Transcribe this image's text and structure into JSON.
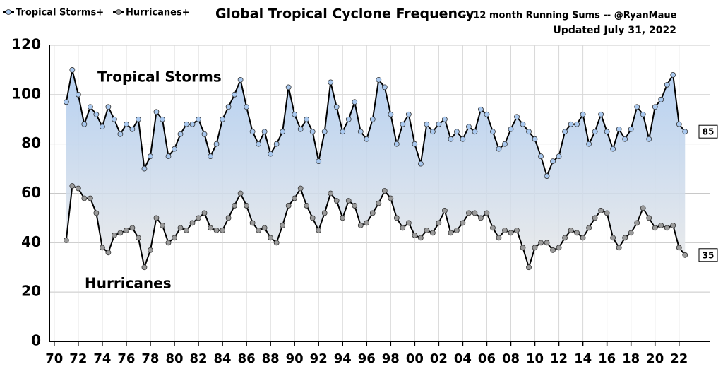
{
  "chart_data": {
    "type": "line",
    "title": "Global Tropical Cyclone Frequency",
    "subtitle": "-- 12 month Running Sums -- @RyanMaue",
    "updated": "Updated July 31, 2022",
    "annotations": [
      "Tropical Storms",
      "Hurricanes"
    ],
    "end_labels": [
      85,
      35
    ],
    "x": [
      1971,
      1971.5,
      1972,
      1972.5,
      1973,
      1973.5,
      1974,
      1974.5,
      1975,
      1975.5,
      1976,
      1976.5,
      1977,
      1977.5,
      1978,
      1978.5,
      1979,
      1979.5,
      1980,
      1980.5,
      1981,
      1981.5,
      1982,
      1982.5,
      1983,
      1983.5,
      1984,
      1984.5,
      1985,
      1985.5,
      1986,
      1986.5,
      1987,
      1987.5,
      1988,
      1988.5,
      1989,
      1989.5,
      1990,
      1990.5,
      1991,
      1991.5,
      1992,
      1992.5,
      1993,
      1993.5,
      1994,
      1994.5,
      1995,
      1995.5,
      1996,
      1996.5,
      1997,
      1997.5,
      1998,
      1998.5,
      1999,
      1999.5,
      2000,
      2000.5,
      2001,
      2001.5,
      2002,
      2002.5,
      2003,
      2003.5,
      2004,
      2004.5,
      2005,
      2005.5,
      2006,
      2006.5,
      2007,
      2007.5,
      2008,
      2008.5,
      2009,
      2009.5,
      2010,
      2010.5,
      2011,
      2011.5,
      2012,
      2012.5,
      2013,
      2013.5,
      2014,
      2014.5,
      2015,
      2015.5,
      2016,
      2016.5,
      2017,
      2017.5,
      2018,
      2018.5,
      2019,
      2019.5,
      2020,
      2020.5,
      2021,
      2021.5,
      2022,
      2022.5
    ],
    "series": [
      {
        "name": "Tropical Storms+",
        "color": "#a9c8ee",
        "values": [
          97,
          110,
          100,
          88,
          95,
          92,
          87,
          95,
          90,
          84,
          88,
          86,
          90,
          70,
          75,
          93,
          90,
          75,
          78,
          84,
          88,
          88,
          90,
          84,
          75,
          80,
          90,
          95,
          100,
          106,
          95,
          85,
          80,
          85,
          76,
          80,
          85,
          103,
          92,
          86,
          90,
          85,
          73,
          85,
          105,
          95,
          85,
          90,
          97,
          85,
          82,
          90,
          106,
          103,
          92,
          80,
          88,
          92,
          80,
          72,
          88,
          85,
          88,
          90,
          82,
          85,
          82,
          87,
          85,
          94,
          92,
          85,
          78,
          80,
          86,
          91,
          88,
          85,
          82,
          75,
          67,
          73,
          75,
          85,
          88,
          88,
          92,
          80,
          85,
          92,
          85,
          78,
          86,
          82,
          86,
          95,
          92,
          82,
          95,
          98,
          104,
          108,
          88,
          85
        ]
      },
      {
        "name": "Hurricanes+",
        "color": "#9a9a9a",
        "values": [
          41,
          63,
          62,
          58,
          58,
          52,
          38,
          36,
          43,
          44,
          45,
          46,
          42,
          30,
          37,
          50,
          47,
          40,
          42,
          46,
          45,
          48,
          50,
          52,
          46,
          45,
          45,
          50,
          55,
          60,
          55,
          48,
          45,
          46,
          42,
          40,
          47,
          55,
          58,
          62,
          55,
          50,
          45,
          52,
          60,
          57,
          50,
          57,
          55,
          47,
          48,
          52,
          56,
          61,
          58,
          50,
          46,
          48,
          43,
          42,
          45,
          44,
          48,
          53,
          44,
          45,
          48,
          52,
          52,
          50,
          52,
          46,
          42,
          45,
          44,
          45,
          38,
          30,
          38,
          40,
          40,
          37,
          38,
          42,
          45,
          44,
          42,
          46,
          50,
          53,
          52,
          42,
          38,
          42,
          44,
          48,
          54,
          50,
          46,
          47,
          46,
          47,
          38,
          35
        ]
      }
    ],
    "xlim": [
      1969.6,
      2024.6
    ],
    "xticks": [
      {
        "value": 1970,
        "label": "70"
      },
      {
        "value": 1972,
        "label": "72"
      },
      {
        "value": 1974,
        "label": "74"
      },
      {
        "value": 1976,
        "label": "76"
      },
      {
        "value": 1978,
        "label": "78"
      },
      {
        "value": 1980,
        "label": "80"
      },
      {
        "value": 1982,
        "label": "82"
      },
      {
        "value": 1984,
        "label": "84"
      },
      {
        "value": 1986,
        "label": "86"
      },
      {
        "value": 1988,
        "label": "88"
      },
      {
        "value": 1990,
        "label": "90"
      },
      {
        "value": 1992,
        "label": "92"
      },
      {
        "value": 1994,
        "label": "94"
      },
      {
        "value": 1996,
        "label": "96"
      },
      {
        "value": 1998,
        "label": "98"
      },
      {
        "value": 2000,
        "label": "00"
      },
      {
        "value": 2002,
        "label": "02"
      },
      {
        "value": 2004,
        "label": "04"
      },
      {
        "value": 2006,
        "label": "06"
      },
      {
        "value": 2008,
        "label": "08"
      },
      {
        "value": 2010,
        "label": "10"
      },
      {
        "value": 2012,
        "label": "12"
      },
      {
        "value": 2014,
        "label": "14"
      },
      {
        "value": 2016,
        "label": "16"
      },
      {
        "value": 2018,
        "label": "18"
      },
      {
        "value": 2020,
        "label": "20"
      },
      {
        "value": 2022,
        "label": "22"
      }
    ],
    "ylim": [
      0,
      120
    ],
    "yticks": [
      0,
      20,
      40,
      60,
      80,
      100,
      120
    ],
    "grid": true
  }
}
